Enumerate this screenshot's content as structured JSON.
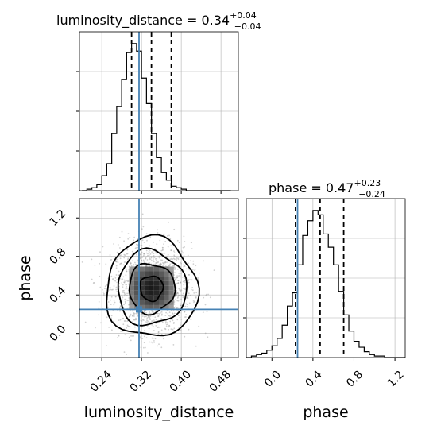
{
  "chart_data": [
    {
      "type": "histogram",
      "panel": "luminosity_distance-1d",
      "title": "luminosity_distance",
      "title_value": "0.34",
      "title_plus": "+0.04",
      "title_minus": "−0.04",
      "xlim": [
        0.195,
        0.515
      ],
      "bins": [
        0.2,
        0.21,
        0.22,
        0.23,
        0.24,
        0.25,
        0.26,
        0.27,
        0.28,
        0.29,
        0.3,
        0.31,
        0.32,
        0.33,
        0.34,
        0.35,
        0.36,
        0.37,
        0.38,
        0.39,
        0.4,
        0.41,
        0.42,
        0.43,
        0.44,
        0.45,
        0.46,
        0.47,
        0.48,
        0.49,
        0.5
      ],
      "counts": [
        0,
        1,
        2,
        4,
        10,
        18,
        38,
        56,
        74,
        92,
        98,
        93,
        75,
        58,
        38,
        22,
        12,
        7,
        3,
        2,
        1,
        0,
        0,
        0,
        0,
        0,
        0,
        0,
        0,
        0
      ],
      "quantiles": [
        0.3,
        0.34,
        0.38
      ],
      "truth": 0.315,
      "grid": true
    },
    {
      "type": "histogram",
      "panel": "phase-1d",
      "title": "phase",
      "title_value": "0.47",
      "title_plus": "+0.23",
      "title_minus": "−0.24",
      "xlabel": "phase",
      "xlim": [
        -0.25,
        1.3
      ],
      "xticks": [
        "0.0",
        "0.4",
        "0.8",
        "1.2"
      ],
      "xtick_values": [
        0.0,
        0.4,
        0.8,
        1.2
      ],
      "bins": [
        -0.25,
        -0.2,
        -0.15,
        -0.1,
        -0.05,
        0.0,
        0.05,
        0.1,
        0.15,
        0.2,
        0.25,
        0.3,
        0.35,
        0.4,
        0.45,
        0.5,
        0.55,
        0.6,
        0.65,
        0.7,
        0.75,
        0.8,
        0.85,
        0.9,
        0.95,
        1.0,
        1.05,
        1.1,
        1.15,
        1.2,
        1.25,
        1.3
      ],
      "counts": [
        0,
        1,
        2,
        3,
        5,
        8,
        13,
        22,
        35,
        44,
        63,
        83,
        93,
        100,
        97,
        84,
        75,
        63,
        45,
        29,
        18,
        11,
        7,
        4,
        2,
        1,
        1,
        0,
        0,
        0,
        0
      ],
      "quantiles": [
        0.23,
        0.47,
        0.7
      ],
      "truth": 0.25,
      "grid": true
    },
    {
      "type": "scatter",
      "panel": "2d-contour",
      "xlabel": "luminosity_distance",
      "ylabel": "phase",
      "xlim": [
        0.195,
        0.515
      ],
      "ylim": [
        -0.25,
        1.4
      ],
      "xticks": [
        "0.24",
        "0.32",
        "0.40",
        "0.48"
      ],
      "xtick_values": [
        0.24,
        0.32,
        0.4,
        0.48
      ],
      "yticks": [
        "0.0",
        "0.4",
        "0.8",
        "1.2"
      ],
      "ytick_values": [
        0.0,
        0.4,
        0.8,
        1.2
      ],
      "center": [
        0.34,
        0.47
      ],
      "sigma": [
        0.04,
        0.235
      ],
      "contour_levels_sigma": [
        0.5,
        1.0,
        1.5,
        2.0
      ],
      "truth": [
        0.315,
        0.25
      ],
      "grid": true
    }
  ],
  "colors": {
    "truth": "#4682b4",
    "hist": "#000000",
    "scatter": "#9a9a9a",
    "grid": "#b0b0b0"
  }
}
